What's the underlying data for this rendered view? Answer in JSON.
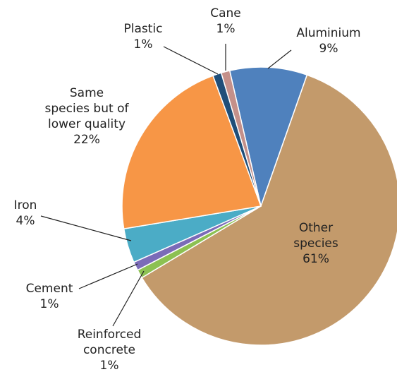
{
  "chart_data": {
    "type": "pie",
    "categories": [
      "Aluminium",
      "Other species",
      "Reinforced concrete",
      "Cement",
      "Iron",
      "Same  species but of lower quality",
      "Plastic",
      "Cane"
    ],
    "values": [
      9,
      61,
      1,
      1,
      4,
      22,
      1,
      1
    ],
    "value_labels": [
      "9%",
      "61%",
      "1%",
      "1%",
      "4%",
      "22%",
      "1%",
      "1%"
    ],
    "colors": [
      "#4f81bd",
      "#c39a6b",
      "#8cc152",
      "#7b6bb8",
      "#4bacc6",
      "#f79646",
      "#1f4e79",
      "#c4908a"
    ]
  }
}
